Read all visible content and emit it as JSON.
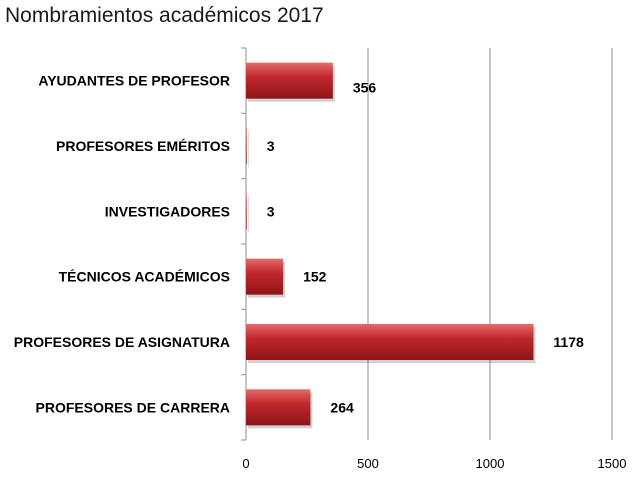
{
  "chart_data": {
    "type": "bar",
    "orientation": "horizontal",
    "title": "Nombramientos académicos 2017",
    "categories": [
      "AYUDANTES  DE PROFESOR",
      "PROFESORES EMÉRITOS",
      "INVESTIGADORES",
      "TÉCNICOS  ACADÉMICOS",
      "PROFESORES DE ASIGNATURA",
      "PROFESORES DE CARRERA"
    ],
    "values": [
      356,
      3,
      3,
      152,
      1178,
      264
    ],
    "value_labels": [
      "356",
      "3",
      "3",
      "152",
      "1178",
      "264"
    ],
    "xlim": [
      0,
      1500
    ],
    "x_ticks": [
      0,
      500,
      1000,
      1500
    ],
    "x_tick_labels": [
      "0",
      "500",
      "1000",
      "1500"
    ],
    "grid": true,
    "legend": "none",
    "colors": {
      "bar_top": "#e56a6a",
      "bar_mid": "#c0282c",
      "bar_bottom": "#8e1518",
      "grid": "#8c8c8c",
      "axis": "#8c8c8c"
    }
  }
}
